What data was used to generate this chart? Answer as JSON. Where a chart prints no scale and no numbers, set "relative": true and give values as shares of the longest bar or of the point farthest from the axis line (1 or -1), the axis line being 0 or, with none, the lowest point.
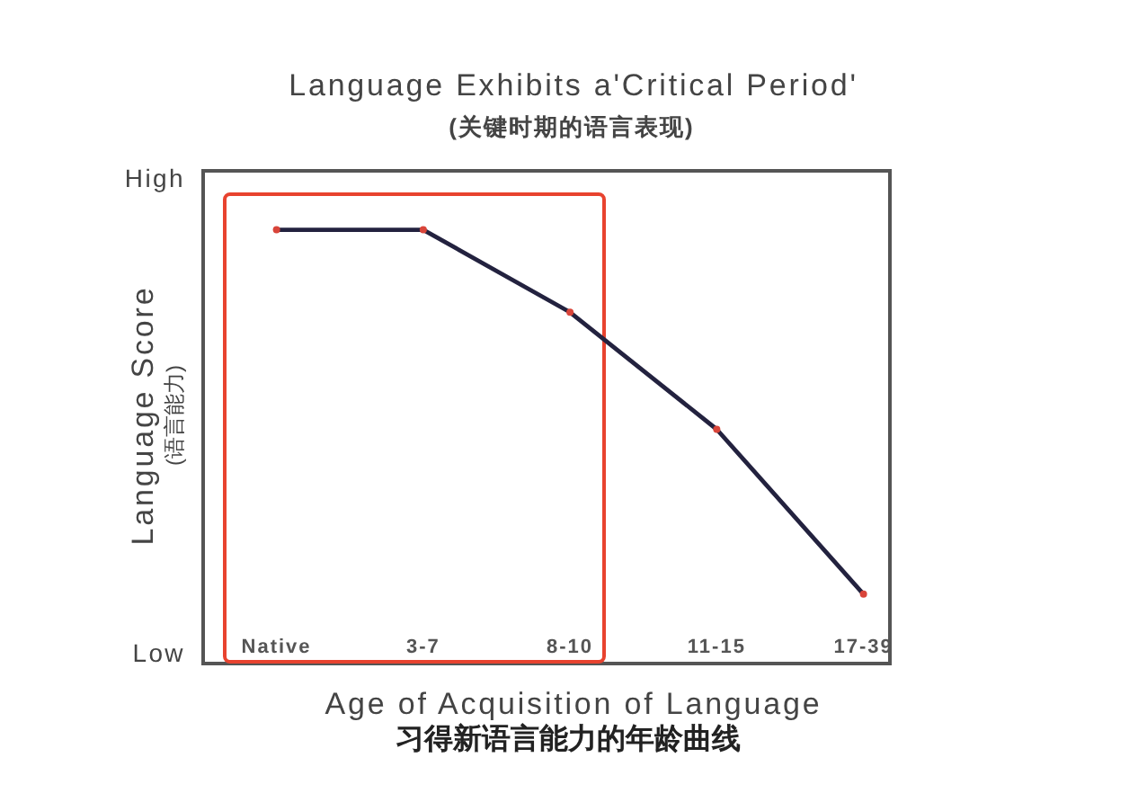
{
  "chart_data": {
    "type": "line",
    "title": "Language Exhibits a'Critical Period'",
    "subtitle": "(关键时期的语言表现)",
    "xlabel": "Age of Acquisition of Language\n习得新语言能力的年龄曲线",
    "ylabel": "Language Score\n(语言能力)",
    "categories": [
      "Native",
      "3-7",
      "8-10",
      "11-15",
      "17-39"
    ],
    "relative": true,
    "series": [
      {
        "color": "#23223f",
        "colors": [
          "#d9453a",
          "#d9453a",
          "#d9453a",
          "#d9453a",
          "#d9453a"
        ],
        "values": [
          1,
          1,
          0.81,
          0.54,
          0.16
        ]
      }
    ],
    "marker": "circle",
    "line_style": "solid",
    "annotations": [
      "High",
      "Low"
    ]
  }
}
